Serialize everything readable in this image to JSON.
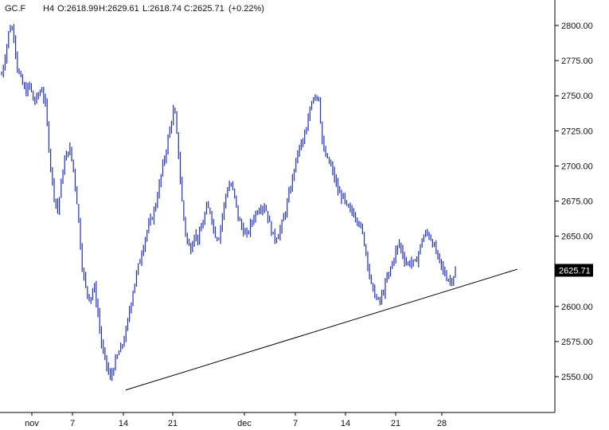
{
  "header": {
    "symbol": "GC.F",
    "timeframe": "H4",
    "open": "O:2618.99",
    "high": "H:2629.61",
    "low": "L:2618.74",
    "close": "C:2625.71",
    "change": "(+0.22%)"
  },
  "colors": {
    "candle": "#1f2fbf",
    "trendline": "#000000",
    "axis": "#000000",
    "price_label_bg": "#000000"
  },
  "chart_data": {
    "type": "line",
    "title": "",
    "xlabel": "",
    "ylabel": "",
    "ylim": [
      2532,
      2812
    ],
    "y_ticks": [
      "2800.00",
      "2775.00",
      "2750.00",
      "2725.00",
      "2700.00",
      "2675.00",
      "2650.00",
      "2625.00",
      "2600.00",
      "2575.00",
      "2550.00"
    ],
    "x_ticks": [
      "nov",
      "7",
      "14",
      "21",
      "dec",
      "7",
      "14",
      "21",
      "28"
    ],
    "last_price_label": "2625.71",
    "series": [
      {
        "values": [
          2765,
          2780,
          2800,
          2795,
          2768,
          2760,
          2752,
          2758,
          2745,
          2750,
          2755,
          2742,
          2705,
          2680,
          2668,
          2692,
          2708,
          2712,
          2695,
          2668,
          2630,
          2612,
          2605,
          2615,
          2595,
          2570,
          2560,
          2548,
          2558,
          2566,
          2572,
          2582,
          2600,
          2615,
          2628,
          2640,
          2652,
          2660,
          2668,
          2682,
          2698,
          2712,
          2728,
          2742,
          2710,
          2672,
          2648,
          2640,
          2652,
          2648,
          2658,
          2670,
          2668,
          2652,
          2648,
          2665,
          2682,
          2688,
          2678,
          2662,
          2655,
          2650,
          2658,
          2665,
          2670,
          2672,
          2668,
          2655,
          2648,
          2652,
          2660,
          2672,
          2685,
          2700,
          2712,
          2718,
          2725,
          2745,
          2752,
          2748,
          2712,
          2705,
          2700,
          2690,
          2680,
          2678,
          2670,
          2668,
          2665,
          2660,
          2650,
          2635,
          2615,
          2608,
          2602,
          2610,
          2620,
          2628,
          2638,
          2645,
          2636,
          2630,
          2632,
          2630,
          2640,
          2650,
          2652,
          2648,
          2640,
          2632,
          2625,
          2620,
          2618,
          2625.71
        ]
      }
    ],
    "trendline": {
      "from": [
        2540.5,
        14
      ],
      "to": [
        2626.5,
        "Jan 7"
      ]
    }
  }
}
